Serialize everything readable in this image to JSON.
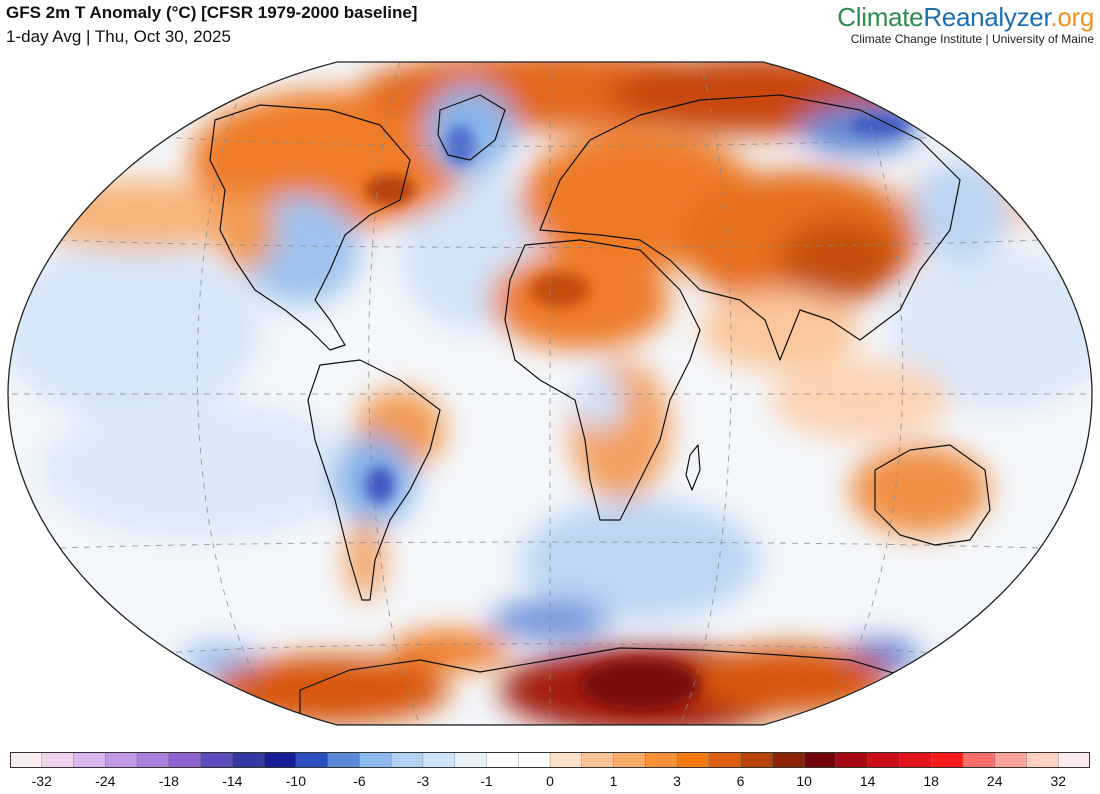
{
  "header": {
    "title": "GFS 2m T Anomaly (°C) [CFSR 1979-2000 baseline]",
    "subtitle": "1-day Avg | Thu, Oct 30, 2025"
  },
  "brand": {
    "name_part1": "Climate",
    "name_part2": "Reanalyzer",
    "name_part3": ".org",
    "tagline": "Climate Change Institute | University of Maine"
  },
  "map": {
    "projection": "Robinson-style world map",
    "center_longitude": 0,
    "graticule": "dashed"
  },
  "colorbar": {
    "colors": [
      "#fdeef2",
      "#ecd4ef",
      "#d6b6ec",
      "#bf98e6",
      "#a77fdc",
      "#8a64cf",
      "#5d4dbc",
      "#3537a4",
      "#1a1e94",
      "#2c4fbc",
      "#5c88d8",
      "#8cb8ec",
      "#b0d0f4",
      "#cfe2f8",
      "#e7f1fb",
      "#ffffff",
      "#ffffff",
      "#fde0c8",
      "#fcc297",
      "#fbaa68",
      "#f99237",
      "#f47a10",
      "#dd5f0a",
      "#b84308",
      "#8a2606",
      "#74070b",
      "#a50b12",
      "#c8101a",
      "#e4121b",
      "#fb1b1b",
      "#fd6f6a",
      "#fca398",
      "#fbd0c5",
      "#fdeaee"
    ],
    "tick_labels": [
      "-32",
      "-24",
      "-18",
      "-14",
      "-10",
      "-6",
      "-3",
      "-1",
      "0",
      "1",
      "3",
      "6",
      "10",
      "14",
      "18",
      "24",
      "32"
    ]
  }
}
